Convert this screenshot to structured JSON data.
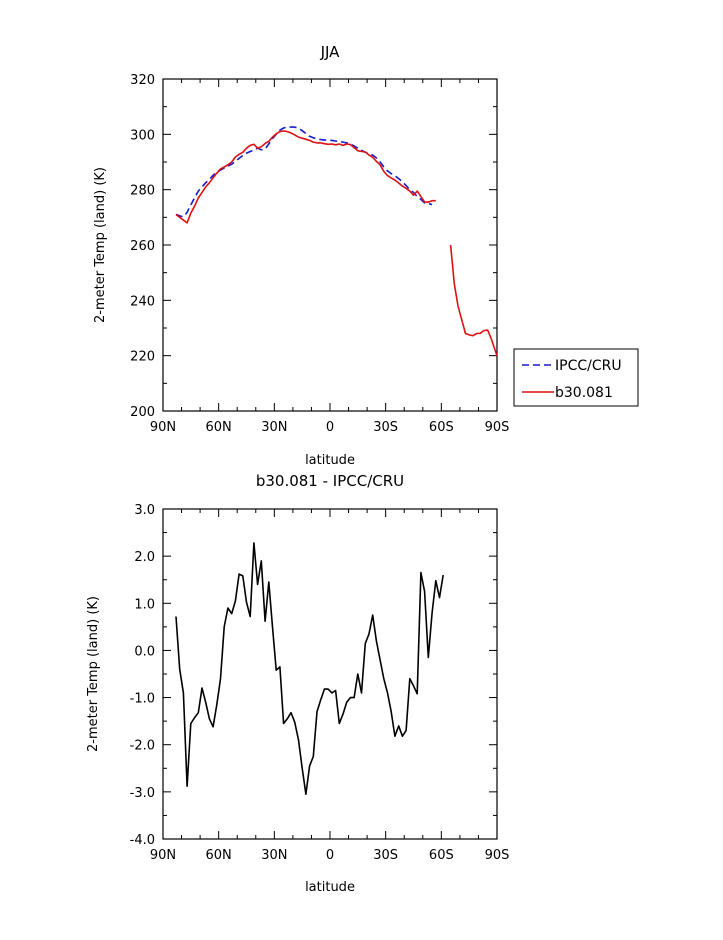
{
  "chart_data": [
    {
      "type": "line",
      "title": "JJA",
      "xlabel": "latitude",
      "ylabel": "2-meter Temp (land) (K)",
      "xlim": [
        90,
        -90
      ],
      "ylim": [
        200,
        320
      ],
      "xticks": [
        90,
        60,
        30,
        0,
        -30,
        -60,
        -90
      ],
      "xtick_labels": [
        "90N",
        "60N",
        "30N",
        "0",
        "30S",
        "60S",
        "90S"
      ],
      "yticks": [
        200,
        220,
        240,
        260,
        280,
        300,
        320
      ],
      "ytick_labels": [
        "200",
        "220",
        "240",
        "260",
        "280",
        "300",
        "320"
      ],
      "legend": "right",
      "series": [
        {
          "name": "IPCC/CRU",
          "color": "#1a1acc",
          "dash": "dashed",
          "segments": [
            [
              [
                83,
                271.1
              ],
              [
                81,
                270.5
              ],
              [
                79,
                270.2
              ],
              [
                77,
                271.8
              ],
              [
                75,
                274.5
              ],
              [
                73,
                277
              ],
              [
                71,
                279.5
              ],
              [
                69,
                281
              ],
              [
                67,
                282.5
              ],
              [
                65,
                283.7
              ],
              [
                63,
                285.2
              ],
              [
                61,
                286.3
              ],
              [
                59,
                287.1
              ],
              [
                57,
                287.8
              ],
              [
                55,
                288.5
              ],
              [
                53,
                289.2
              ],
              [
                51,
                290.3
              ],
              [
                49,
                291.3
              ],
              [
                47,
                292.3
              ],
              [
                45,
                293.2
              ],
              [
                43,
                293.8
              ],
              [
                41,
                294.3
              ],
              [
                39,
                295
              ],
              [
                37,
                294.4
              ],
              [
                35,
                294.7
              ],
              [
                33,
                296.5
              ],
              [
                31,
                298.5
              ],
              [
                29,
                300
              ],
              [
                27,
                301.5
              ],
              [
                25,
                302.3
              ],
              [
                23,
                302.6
              ],
              [
                21,
                302.6
              ],
              [
                19,
                302.6
              ],
              [
                17,
                302.2
              ],
              [
                15,
                301.3
              ],
              [
                13,
                300.3
              ],
              [
                11,
                299.3
              ],
              [
                9,
                298.8
              ],
              [
                7,
                298.4
              ],
              [
                5,
                298.1
              ],
              [
                3,
                297.9
              ],
              [
                1,
                297.9
              ],
              [
                -1,
                297.8
              ],
              [
                -3,
                297.6
              ],
              [
                -5,
                297.4
              ],
              [
                -7,
                297.2
              ],
              [
                -9,
                296.9
              ],
              [
                -11,
                296.5
              ],
              [
                -13,
                295.8
              ],
              [
                -15,
                295
              ],
              [
                -17,
                294.2
              ],
              [
                -19,
                293.5
              ],
              [
                -21,
                293
              ],
              [
                -23,
                292.5
              ],
              [
                -25,
                291.5
              ],
              [
                -27,
                290
              ],
              [
                -29,
                288.2
              ],
              [
                -31,
                286.8
              ],
              [
                -33,
                285.8
              ],
              [
                -35,
                285
              ],
              [
                -37,
                284
              ],
              [
                -39,
                282.8
              ],
              [
                -41,
                281.5
              ],
              [
                -43,
                280
              ],
              [
                -45,
                279
              ],
              [
                -47,
                277.5
              ],
              [
                -49,
                276.5
              ],
              [
                -51,
                275.2
              ],
              [
                -53,
                275
              ],
              [
                -55,
                274.6
              ]
            ]
          ]
        },
        {
          "name": "b30.081",
          "color": "#dd1111",
          "dash": "solid",
          "segments": [
            [
              [
                83,
                271
              ],
              [
                81,
                270
              ],
              [
                79,
                269
              ],
              [
                77,
                268
              ],
              [
                75,
                271.5
              ],
              [
                73,
                274
              ],
              [
                71,
                277
              ],
              [
                69,
                279
              ],
              [
                67,
                281
              ],
              [
                65,
                282.5
              ],
              [
                63,
                284.3
              ],
              [
                61,
                286
              ],
              [
                59,
                287.5
              ],
              [
                57,
                288.2
              ],
              [
                55,
                289
              ],
              [
                53,
                290
              ],
              [
                51,
                291.8
              ],
              [
                49,
                292.8
              ],
              [
                47,
                293.5
              ],
              [
                45,
                295
              ],
              [
                43,
                296
              ],
              [
                41,
                296.4
              ],
              [
                39,
                295
              ],
              [
                37,
                295.5
              ],
              [
                35,
                296.7
              ],
              [
                33,
                297.5
              ],
              [
                31,
                299
              ],
              [
                29,
                300.2
              ],
              [
                27,
                301
              ],
              [
                25,
                301.2
              ],
              [
                23,
                301
              ],
              [
                21,
                300.5
              ],
              [
                19,
                299.8
              ],
              [
                17,
                299
              ],
              [
                15,
                298.6
              ],
              [
                13,
                298.2
              ],
              [
                11,
                297.8
              ],
              [
                9,
                297.2
              ],
              [
                7,
                296.9
              ],
              [
                5,
                296.9
              ],
              [
                3,
                296.6
              ],
              [
                1,
                296.4
              ],
              [
                -1,
                296.5
              ],
              [
                -3,
                296.2
              ],
              [
                -5,
                296.5
              ],
              [
                -7,
                296
              ],
              [
                -9,
                296.5
              ],
              [
                -11,
                296.3
              ],
              [
                -13,
                295.2
              ],
              [
                -15,
                294.1
              ],
              [
                -17,
                293.8
              ],
              [
                -19,
                293.6
              ],
              [
                -21,
                292.5
              ],
              [
                -23,
                291.7
              ],
              [
                -25,
                290.2
              ],
              [
                -27,
                289
              ],
              [
                -29,
                286.6
              ],
              [
                -31,
                285.1
              ],
              [
                -33,
                284.2
              ],
              [
                -35,
                283.5
              ],
              [
                -37,
                282.4
              ],
              [
                -39,
                281.3
              ],
              [
                -41,
                280.5
              ],
              [
                -43,
                279.5
              ],
              [
                -45,
                278
              ],
              [
                -47,
                279.5
              ],
              [
                -49,
                277.5
              ],
              [
                -51,
                275.5
              ],
              [
                -53,
                275.5
              ],
              [
                -55,
                276
              ],
              [
                -57,
                276
              ]
            ],
            [
              [
                -65,
                260
              ],
              [
                -67,
                246
              ],
              [
                -69,
                238
              ],
              [
                -71,
                233
              ],
              [
                -73,
                228
              ],
              [
                -75,
                227.5
              ],
              [
                -77,
                227.2
              ],
              [
                -79,
                228
              ],
              [
                -81,
                228.1
              ],
              [
                -83,
                229.1
              ],
              [
                -85,
                229.2
              ],
              [
                -87,
                226
              ],
              [
                -89,
                222
              ],
              [
                -90,
                220
              ]
            ]
          ]
        }
      ]
    },
    {
      "type": "line",
      "title": "b30.081 - IPCC/CRU",
      "xlabel": "latitude",
      "ylabel": "2-meter Temp (land) (K)",
      "xlim": [
        90,
        -90
      ],
      "ylim": [
        -4,
        3
      ],
      "xticks": [
        90,
        60,
        30,
        0,
        -30,
        -60,
        -90
      ],
      "xtick_labels": [
        "90N",
        "60N",
        "30N",
        "0",
        "30S",
        "60S",
        "90S"
      ],
      "yticks": [
        -4,
        -3,
        -2,
        -1,
        0,
        1,
        2,
        3
      ],
      "ytick_labels": [
        "-4.0",
        "-3.0",
        "-2.0",
        "-1.0",
        "0.0",
        "1.0",
        "2.0",
        "3.0"
      ],
      "series": [
        {
          "color": "#000000",
          "dash": "solid",
          "segments": [
            [
              [
                83,
                0.72
              ],
              [
                81,
                -0.4
              ],
              [
                79,
                -0.9
              ],
              [
                77,
                -2.88
              ],
              [
                75,
                -1.55
              ],
              [
                73,
                -1.43
              ],
              [
                71,
                -1.32
              ],
              [
                69,
                -0.8
              ],
              [
                67,
                -1.1
              ],
              [
                65,
                -1.45
              ],
              [
                63,
                -1.62
              ],
              [
                61,
                -1.15
              ],
              [
                59,
                -0.6
              ],
              [
                57,
                0.5
              ],
              [
                55,
                0.9
              ],
              [
                53,
                0.78
              ],
              [
                51,
                1.05
              ],
              [
                49,
                1.62
              ],
              [
                47,
                1.58
              ],
              [
                45,
                1.02
              ],
              [
                43,
                0.72
              ],
              [
                41,
                2.28
              ],
              [
                39,
                1.4
              ],
              [
                37,
                1.9
              ],
              [
                35,
                0.62
              ],
              [
                33,
                1.45
              ],
              [
                31,
                0.5
              ],
              [
                29,
                -0.42
              ],
              [
                27,
                -0.35
              ],
              [
                25,
                -1.55
              ],
              [
                23,
                -1.45
              ],
              [
                21,
                -1.32
              ],
              [
                19,
                -1.52
              ],
              [
                17,
                -1.9
              ],
              [
                15,
                -2.5
              ],
              [
                13,
                -3.05
              ],
              [
                11,
                -2.45
              ],
              [
                9,
                -2.25
              ],
              [
                7,
                -1.3
              ],
              [
                5,
                -1.05
              ],
              [
                3,
                -0.82
              ],
              [
                1,
                -0.82
              ],
              [
                -1,
                -0.9
              ],
              [
                -3,
                -0.85
              ],
              [
                -5,
                -1.55
              ],
              [
                -7,
                -1.35
              ],
              [
                -9,
                -1.1
              ],
              [
                -11,
                -1
              ],
              [
                -13,
                -1
              ],
              [
                -15,
                -0.5
              ],
              [
                -17,
                -0.9
              ],
              [
                -19,
                0.15
              ],
              [
                -21,
                0.35
              ],
              [
                -23,
                0.75
              ],
              [
                -25,
                0.2
              ],
              [
                -27,
                -0.2
              ],
              [
                -29,
                -0.6
              ],
              [
                -31,
                -0.9
              ],
              [
                -33,
                -1.3
              ],
              [
                -35,
                -1.82
              ],
              [
                -37,
                -1.6
              ],
              [
                -39,
                -1.82
              ],
              [
                -41,
                -1.7
              ],
              [
                -43,
                -0.6
              ],
              [
                -45,
                -0.75
              ],
              [
                -47,
                -0.92
              ],
              [
                -49,
                1.65
              ],
              [
                -51,
                1.25
              ],
              [
                -53,
                -0.15
              ],
              [
                -55,
                0.8
              ],
              [
                -57,
                1.48
              ],
              [
                -59,
                1.12
              ],
              [
                -61,
                1.6
              ]
            ]
          ]
        }
      ]
    }
  ]
}
